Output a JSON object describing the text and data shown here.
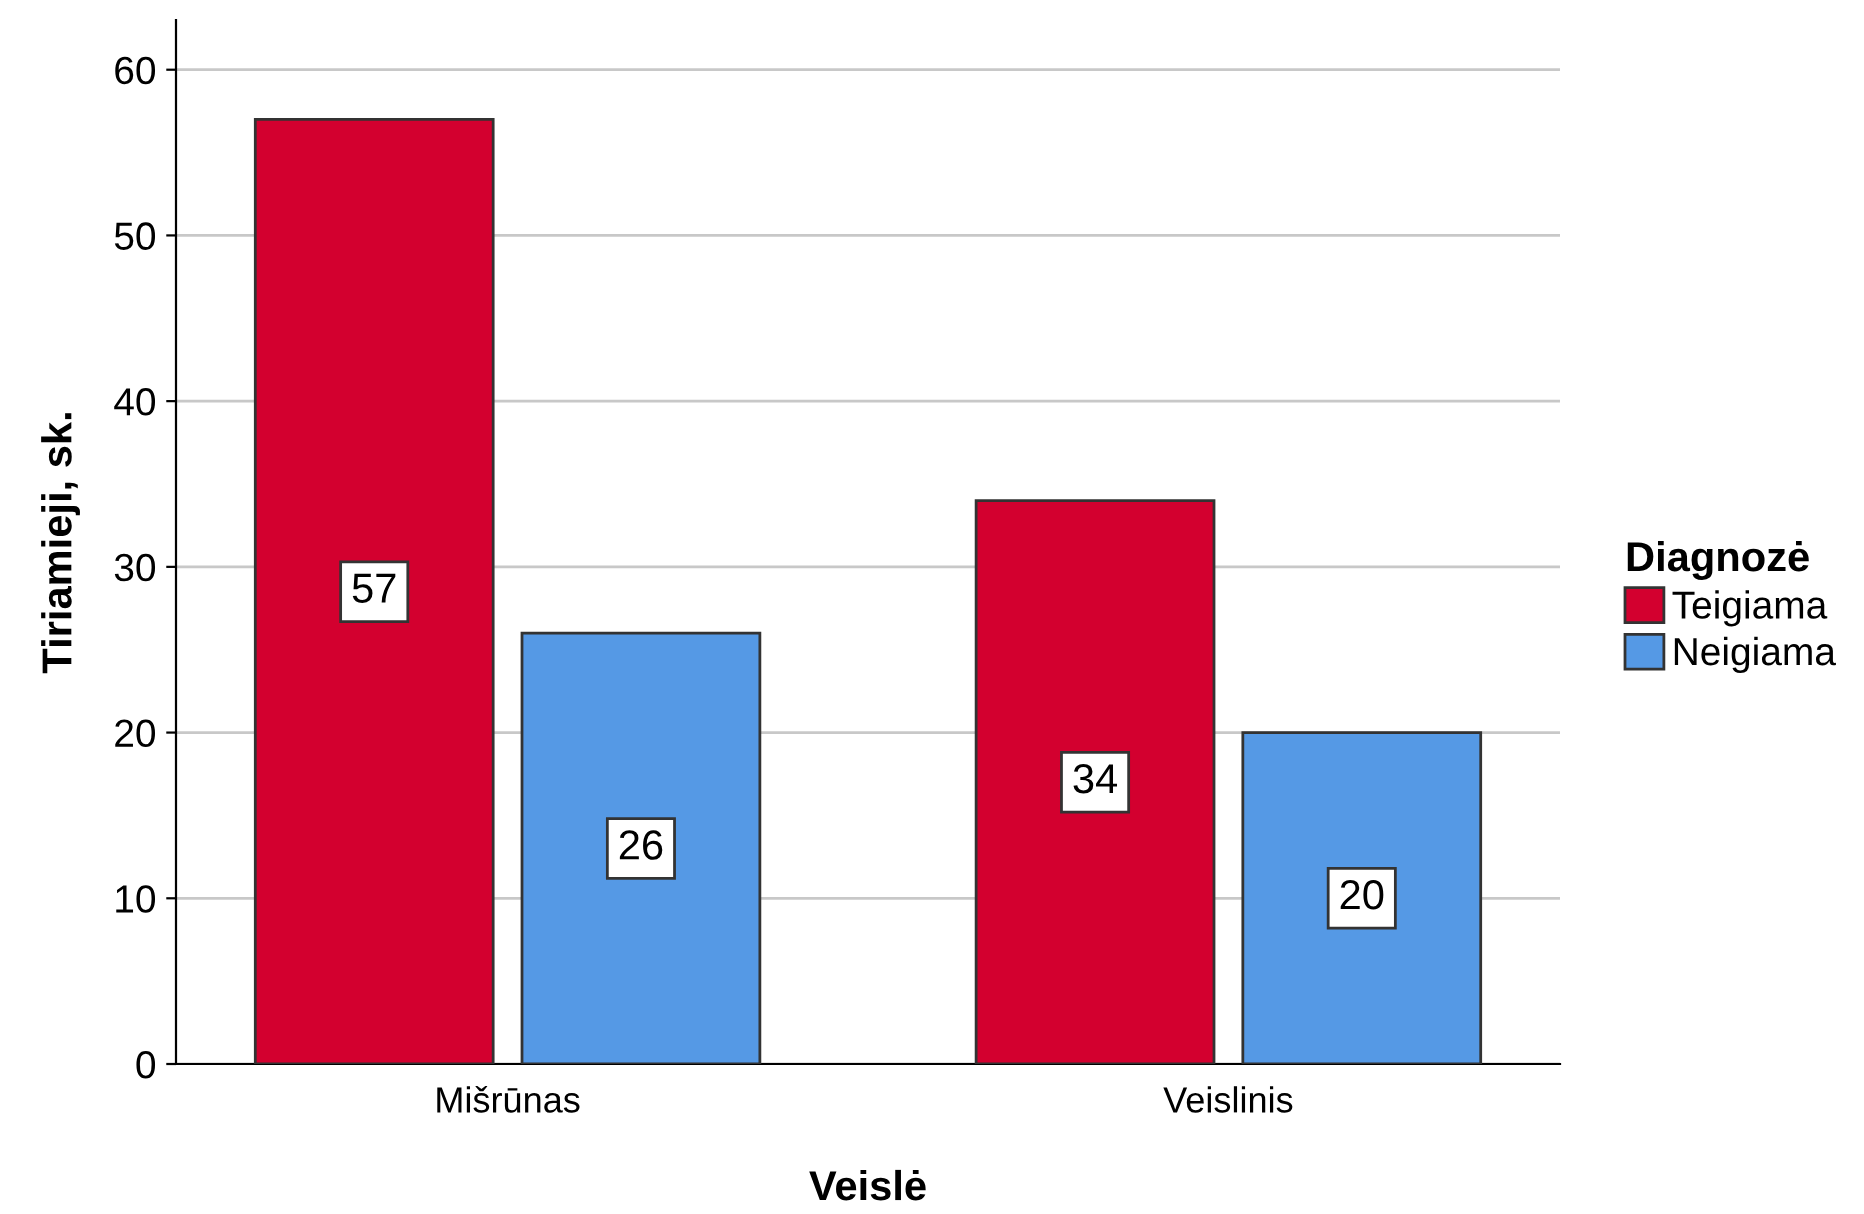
{
  "chart_data": {
    "type": "bar",
    "xlabel": "Veislė",
    "ylabel": "Tiriamieji, sk.",
    "legend_title": "Diagnozė",
    "categories": [
      "Mišrūnas",
      "Veislinis"
    ],
    "series": [
      {
        "name": "Teigiama",
        "color": "#d3002f",
        "values": [
          57,
          34
        ]
      },
      {
        "name": "Neigiama",
        "color": "#5599e5",
        "values": [
          26,
          20
        ]
      }
    ],
    "ylim": [
      0,
      63
    ],
    "yticks": [
      0,
      10,
      20,
      30,
      40,
      50,
      60
    ],
    "grid": "y",
    "legend": "right",
    "data_labels": true
  }
}
